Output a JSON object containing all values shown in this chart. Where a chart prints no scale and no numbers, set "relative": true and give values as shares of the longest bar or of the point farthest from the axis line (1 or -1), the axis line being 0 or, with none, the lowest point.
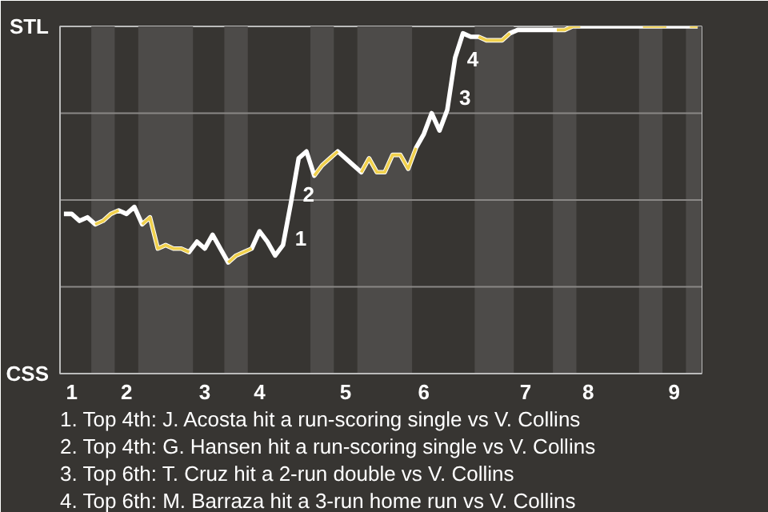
{
  "chart_data": {
    "type": "line",
    "relative": true,
    "categories": [
      null,
      "1",
      null,
      null,
      null,
      null,
      null,
      null,
      "2",
      null,
      null,
      null,
      null,
      null,
      null,
      null,
      null,
      null,
      "3",
      null,
      null,
      null,
      null,
      null,
      null,
      "4",
      null,
      null,
      null,
      null,
      null,
      null,
      null,
      null,
      null,
      null,
      "5",
      null,
      null,
      null,
      null,
      null,
      null,
      null,
      null,
      null,
      "6",
      null,
      null,
      null,
      null,
      null,
      null,
      null,
      null,
      null,
      null,
      null,
      null,
      "7",
      null,
      null,
      null,
      null,
      null,
      null,
      null,
      "8",
      null,
      null,
      null,
      null,
      null,
      null,
      null,
      null,
      null,
      null,
      "9",
      null,
      null,
      null
    ],
    "series": [
      {
        "color": "#ffffff",
        "values": [
          0.46,
          0.46,
          0.44,
          0.45,
          0.43,
          0.44,
          0.46,
          0.47,
          0.46,
          0.48,
          0.43,
          0.45,
          0.36,
          0.37,
          0.36,
          0.36,
          0.35,
          0.38,
          0.36,
          0.4,
          0.36,
          0.32,
          0.34,
          0.35,
          0.36,
          0.41,
          0.38,
          0.34,
          0.37,
          0.49,
          0.62,
          0.64,
          0.57,
          0.6,
          0.62,
          0.64,
          0.62,
          0.6,
          0.58,
          0.62,
          0.58,
          0.58,
          0.63,
          0.63,
          0.59,
          0.65,
          0.69,
          0.75,
          0.7,
          0.76,
          0.91,
          0.98,
          0.97,
          0.97,
          0.96,
          0.96,
          0.96,
          0.98,
          0.99,
          0.99,
          0.99,
          0.99,
          0.99,
          0.99,
          0.99,
          1,
          1,
          1,
          1,
          1,
          1,
          1,
          1,
          1,
          1,
          1,
          1,
          1,
          1,
          1,
          1,
          1
        ]
      },
      {
        "color": "#f0d04c",
        "values": [
          null,
          null,
          null,
          null,
          0.43,
          0.44,
          0.46,
          0.47,
          null,
          null,
          0.43,
          0.45,
          0.36,
          0.37,
          0.36,
          0.36,
          0.35,
          null,
          null,
          null,
          null,
          0.32,
          0.34,
          0.35,
          0.36,
          null,
          null,
          null,
          null,
          null,
          null,
          null,
          0.57,
          0.6,
          0.62,
          0.64,
          null,
          null,
          0.58,
          0.62,
          0.58,
          0.58,
          0.63,
          0.63,
          0.59,
          0.65,
          null,
          null,
          null,
          null,
          null,
          null,
          null,
          0.97,
          0.96,
          0.96,
          0.96,
          0.98,
          null,
          null,
          null,
          null,
          null,
          0.99,
          0.99,
          1,
          1,
          null,
          null,
          null,
          null,
          null,
          null,
          null,
          1,
          1,
          1,
          1,
          null,
          null,
          1,
          1
        ]
      }
    ],
    "ref_lines": [
      {
        "axis": "y",
        "value": 0.25,
        "color": "#8a8886"
      },
      {
        "axis": "y",
        "value": 0.5,
        "color": "#8a8886"
      },
      {
        "axis": "y",
        "value": 0.75,
        "color": "#8a8886"
      }
    ],
    "annotations": [
      "STL",
      "CSS",
      "1",
      "2",
      "3",
      "4",
      "1. Top 4th: J. Acosta hit a run-scoring single vs V. Collins",
      "2. Top 4th: G. Hansen hit a run-scoring single vs V. Collins",
      "3. Top 6th: T. Cruz hit a 2-run double vs V. Collins",
      "4. Top 6th: M. Barraza hit a 3-run home run vs V. Collins"
    ]
  }
}
